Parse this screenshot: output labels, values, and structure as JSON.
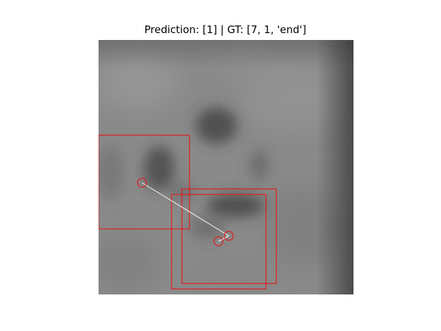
{
  "figure": {
    "title": "Prediction: [1] | GT: [7, 1, 'end']"
  },
  "colors": {
    "box_stroke": "#e41a1c",
    "marker_stroke": "#e41a1c",
    "trajectory_line": "#ffffff",
    "image_base": "#8a8a8a"
  },
  "icons": {
    "marker": "circle-marker-icon",
    "box": "bounding-box-icon"
  }
}
